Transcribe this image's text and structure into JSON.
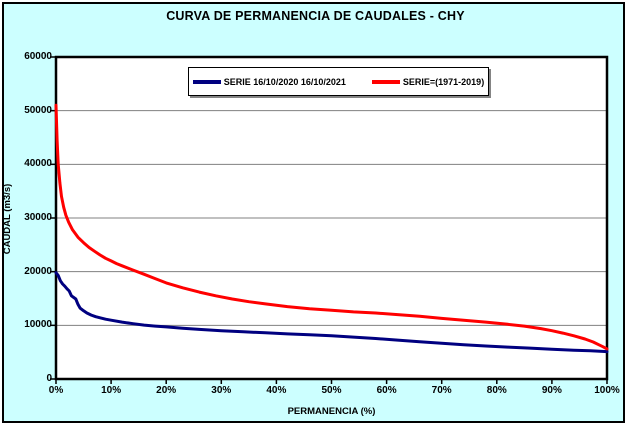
{
  "window": {
    "background_color": "#CCFFFF",
    "frame_border_color": "#000000"
  },
  "chart_data": {
    "type": "line",
    "title": "CURVA DE PERMANENCIA DE CAUDALES - CHY",
    "xlabel": "PERMANENCIA (%)",
    "ylabel": "CAUDAL (m3/s)",
    "xlim": [
      0,
      100
    ],
    "ylim": [
      0,
      60000
    ],
    "x_ticks": [
      "0%",
      "10%",
      "20%",
      "30%",
      "40%",
      "50%",
      "60%",
      "70%",
      "80%",
      "90%",
      "100%"
    ],
    "y_ticks": [
      0,
      10000,
      20000,
      30000,
      40000,
      50000,
      60000
    ],
    "grid": "horizontal gridlines only",
    "gridline_color": "#808080",
    "plot_background": "#FFFFFF",
    "axis_color": "#000000",
    "legend_position": "top-center inside plot",
    "series": [
      {
        "name": "SERIE 16/10/2020 16/10/2021",
        "color": "#000080",
        "points": [
          [
            0,
            19800
          ],
          [
            0.4,
            19300
          ],
          [
            0.8,
            18300
          ],
          [
            1.2,
            17700
          ],
          [
            1.6,
            17300
          ],
          [
            2,
            16800
          ],
          [
            2.4,
            16400
          ],
          [
            2.8,
            15500
          ],
          [
            3.2,
            15200
          ],
          [
            3.6,
            14900
          ],
          [
            4,
            13900
          ],
          [
            4.4,
            13200
          ],
          [
            5,
            12700
          ],
          [
            5.6,
            12300
          ],
          [
            6.4,
            11900
          ],
          [
            7.2,
            11600
          ],
          [
            8,
            11400
          ],
          [
            9,
            11150
          ],
          [
            10,
            10950
          ],
          [
            12,
            10600
          ],
          [
            14,
            10300
          ],
          [
            16,
            10050
          ],
          [
            18,
            9850
          ],
          [
            20,
            9700
          ],
          [
            23,
            9450
          ],
          [
            26,
            9250
          ],
          [
            30,
            9000
          ],
          [
            34,
            8800
          ],
          [
            38,
            8600
          ],
          [
            42,
            8400
          ],
          [
            46,
            8250
          ],
          [
            50,
            8050
          ],
          [
            54,
            7800
          ],
          [
            58,
            7550
          ],
          [
            62,
            7250
          ],
          [
            66,
            6950
          ],
          [
            70,
            6650
          ],
          [
            74,
            6400
          ],
          [
            78,
            6150
          ],
          [
            82,
            5950
          ],
          [
            86,
            5750
          ],
          [
            90,
            5550
          ],
          [
            94,
            5350
          ],
          [
            97,
            5250
          ],
          [
            100,
            5100
          ]
        ]
      },
      {
        "name": "SERIE=(1971-2019)",
        "color": "#FF0000",
        "points": [
          [
            0,
            51000
          ],
          [
            0.2,
            44500
          ],
          [
            0.4,
            40000
          ],
          [
            0.7,
            36500
          ],
          [
            1,
            34000
          ],
          [
            1.4,
            32000
          ],
          [
            1.8,
            30500
          ],
          [
            2.3,
            29200
          ],
          [
            3,
            27800
          ],
          [
            4,
            26400
          ],
          [
            5,
            25400
          ],
          [
            6,
            24500
          ],
          [
            7,
            23800
          ],
          [
            8,
            23100
          ],
          [
            9,
            22500
          ],
          [
            10,
            22000
          ],
          [
            11,
            21500
          ],
          [
            12,
            21100
          ],
          [
            14,
            20300
          ],
          [
            16,
            19500
          ],
          [
            18,
            18700
          ],
          [
            20,
            17900
          ],
          [
            23,
            17000
          ],
          [
            26,
            16200
          ],
          [
            29,
            15500
          ],
          [
            32,
            14900
          ],
          [
            35,
            14400
          ],
          [
            38,
            14000
          ],
          [
            42,
            13500
          ],
          [
            46,
            13100
          ],
          [
            50,
            12800
          ],
          [
            54,
            12500
          ],
          [
            58,
            12300
          ],
          [
            62,
            12000
          ],
          [
            66,
            11700
          ],
          [
            70,
            11300
          ],
          [
            74,
            10950
          ],
          [
            78,
            10600
          ],
          [
            82,
            10200
          ],
          [
            85,
            9850
          ],
          [
            88,
            9400
          ],
          [
            90,
            9000
          ],
          [
            92,
            8550
          ],
          [
            94,
            8050
          ],
          [
            96,
            7450
          ],
          [
            97.5,
            6900
          ],
          [
            98.5,
            6400
          ],
          [
            99.3,
            6000
          ],
          [
            100,
            5600
          ]
        ]
      }
    ]
  }
}
